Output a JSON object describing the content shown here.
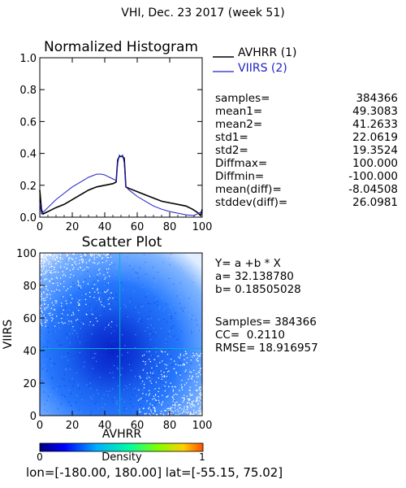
{
  "header": {
    "title": "VHI,  Dec. 23 2017 (week 51)"
  },
  "histogram": {
    "title": "Normalized Histogram",
    "legend": [
      {
        "label": "AVHRR (1)",
        "color": "#000000"
      },
      {
        "label": "VIIRS (2)",
        "color": "#2020c8"
      }
    ]
  },
  "stats": [
    {
      "label": "samples=",
      "value": "384366"
    },
    {
      "label": "mean1=",
      "value": "49.3083"
    },
    {
      "label": "mean2=",
      "value": "41.2633"
    },
    {
      "label": "std1=",
      "value": "22.0619"
    },
    {
      "label": "std2=",
      "value": "19.3524"
    },
    {
      "label": "Diffmax=",
      "value": "100.000"
    },
    {
      "label": "Diffmin=",
      "value": "-100.000"
    },
    {
      "label": "mean(diff)=",
      "value": "-8.04508"
    },
    {
      "label": "stddev(diff)=",
      "value": "26.0981"
    }
  ],
  "scatter": {
    "title": "Scatter Plot",
    "xlabel": "AVHRR",
    "ylabel": "VIIRS"
  },
  "regression": {
    "equation": "Y= a +b * X",
    "a": "a= 32.138780",
    "b": "b= 0.18505028",
    "samples": "Samples= 384366",
    "cc": "CC=  0.2110",
    "rmse": "RMSE= 18.916957"
  },
  "colorbar": {
    "label": "Density",
    "min": "0",
    "max": "1"
  },
  "footer": {
    "range": "lon=[-180.00, 180.00] lat=[-55.15, 75.02]"
  },
  "chart_data": [
    {
      "type": "line",
      "title": "Normalized Histogram",
      "xlim": [
        0,
        100
      ],
      "ylim": [
        0,
        1.0
      ],
      "xticks": [
        "0",
        "20",
        "40",
        "60",
        "80",
        "100"
      ],
      "yticks": [
        "0.0",
        "0.2",
        "0.4",
        "0.6",
        "0.8",
        "1.0"
      ],
      "series": [
        {
          "name": "AVHRR (1)",
          "color": "#000000",
          "x": [
            0,
            1,
            2,
            4,
            6,
            10,
            15,
            20,
            25,
            30,
            35,
            40,
            45,
            47,
            48,
            49,
            50,
            51,
            52,
            53,
            55,
            60,
            65,
            70,
            75,
            80,
            85,
            90,
            94,
            97,
            99,
            100
          ],
          "y": [
            0.17,
            0.05,
            0.02,
            0.03,
            0.04,
            0.06,
            0.08,
            0.11,
            0.14,
            0.17,
            0.19,
            0.2,
            0.21,
            0.22,
            0.36,
            0.38,
            0.38,
            0.38,
            0.37,
            0.19,
            0.18,
            0.16,
            0.14,
            0.12,
            0.1,
            0.09,
            0.08,
            0.07,
            0.05,
            0.03,
            0.01,
            0.05
          ]
        },
        {
          "name": "VIIRS (2)",
          "color": "#2020c8",
          "x": [
            0,
            1,
            2,
            5,
            10,
            15,
            20,
            25,
            30,
            35,
            38,
            40,
            45,
            47,
            48,
            49,
            50,
            51,
            52,
            53,
            55,
            60,
            65,
            70,
            75,
            80,
            85,
            90,
            95,
            99,
            100
          ],
          "y": [
            0.09,
            0.02,
            0.03,
            0.06,
            0.11,
            0.15,
            0.19,
            0.22,
            0.25,
            0.27,
            0.27,
            0.265,
            0.24,
            0.23,
            0.34,
            0.39,
            0.38,
            0.39,
            0.34,
            0.19,
            0.17,
            0.13,
            0.1,
            0.07,
            0.05,
            0.035,
            0.025,
            0.015,
            0.01,
            0.03,
            0.02
          ]
        }
      ]
    },
    {
      "type": "scatter",
      "title": "Scatter Plot",
      "xlabel": "AVHRR",
      "ylabel": "VIIRS",
      "xlim": [
        0,
        100
      ],
      "ylim": [
        0,
        100
      ],
      "xticks": [
        "0",
        "20",
        "40",
        "60",
        "80",
        "100"
      ],
      "yticks": [
        "0",
        "20",
        "40",
        "60",
        "80",
        "100"
      ],
      "density_center": [
        45,
        40
      ],
      "mean_lines": {
        "x": 49.3083,
        "y": 41.2633,
        "color": "#00b4c8"
      },
      "colorscale": [
        "#000080",
        "#0000ff",
        "#00b0ff",
        "#00ffa0",
        "#80ff00",
        "#ffd000",
        "#ff5000"
      ]
    }
  ]
}
